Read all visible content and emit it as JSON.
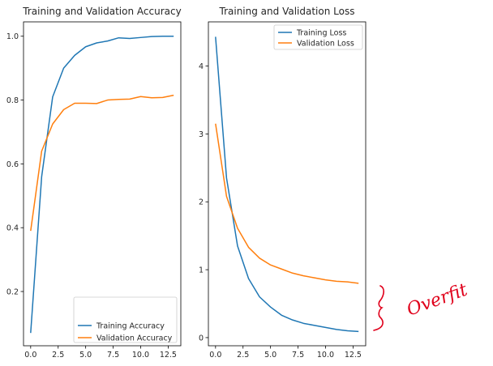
{
  "chart_data": [
    {
      "type": "line",
      "title": "Training and Validation Accuracy",
      "xlabel": "",
      "ylabel": "",
      "xlim": [
        -0.65,
        13.65
      ],
      "ylim": [
        0.03,
        1.045
      ],
      "xticks": [
        0.0,
        2.5,
        5.0,
        7.5,
        10.0,
        12.5
      ],
      "xtick_labels": [
        "0.0",
        "2.5",
        "5.0",
        "7.5",
        "10.0",
        "12.5"
      ],
      "yticks": [
        0.2,
        0.4,
        0.6,
        0.8,
        1.0
      ],
      "ytick_labels": [
        "0.2",
        "0.4",
        "0.6",
        "0.8",
        "1.0"
      ],
      "legend": "lower-right",
      "grid": false,
      "x": [
        0,
        1,
        2,
        3,
        4,
        5,
        6,
        7,
        8,
        9,
        10,
        11,
        12,
        13
      ],
      "series": [
        {
          "name": "Training Accuracy",
          "color": "#1f77b4",
          "values": [
            0.07,
            0.56,
            0.81,
            0.9,
            0.94,
            0.967,
            0.979,
            0.985,
            0.995,
            0.993,
            0.996,
            0.999,
            1.0,
            1.0
          ]
        },
        {
          "name": "Validation Accuracy",
          "color": "#ff7f0e",
          "values": [
            0.39,
            0.64,
            0.725,
            0.77,
            0.79,
            0.79,
            0.789,
            0.8,
            0.802,
            0.803,
            0.811,
            0.807,
            0.808,
            0.815
          ]
        }
      ]
    },
    {
      "type": "line",
      "title": "Training and Validation Loss",
      "xlabel": "",
      "ylabel": "",
      "xlim": [
        -0.65,
        13.65
      ],
      "ylim": [
        -0.12,
        4.65
      ],
      "xticks": [
        0.0,
        2.5,
        5.0,
        7.5,
        10.0,
        12.5
      ],
      "xtick_labels": [
        "0.0",
        "2.5",
        "5.0",
        "7.5",
        "10.0",
        "12.5"
      ],
      "yticks": [
        0,
        1,
        2,
        3,
        4
      ],
      "ytick_labels": [
        "0",
        "1",
        "2",
        "3",
        "4"
      ],
      "legend": "upper-right",
      "grid": false,
      "x": [
        0,
        1,
        2,
        3,
        4,
        5,
        6,
        7,
        8,
        9,
        10,
        11,
        12,
        13
      ],
      "series": [
        {
          "name": "Training Loss",
          "color": "#1f77b4",
          "values": [
            4.43,
            2.35,
            1.35,
            0.87,
            0.6,
            0.45,
            0.33,
            0.26,
            0.21,
            0.18,
            0.15,
            0.12,
            0.1,
            0.09
          ]
        },
        {
          "name": "Validation Loss",
          "color": "#ff7f0e",
          "values": [
            3.15,
            2.08,
            1.61,
            1.33,
            1.17,
            1.07,
            1.01,
            0.95,
            0.91,
            0.88,
            0.85,
            0.83,
            0.82,
            0.8
          ]
        }
      ]
    }
  ],
  "annotation": {
    "text": "Overfit",
    "color": "#e0001b"
  }
}
